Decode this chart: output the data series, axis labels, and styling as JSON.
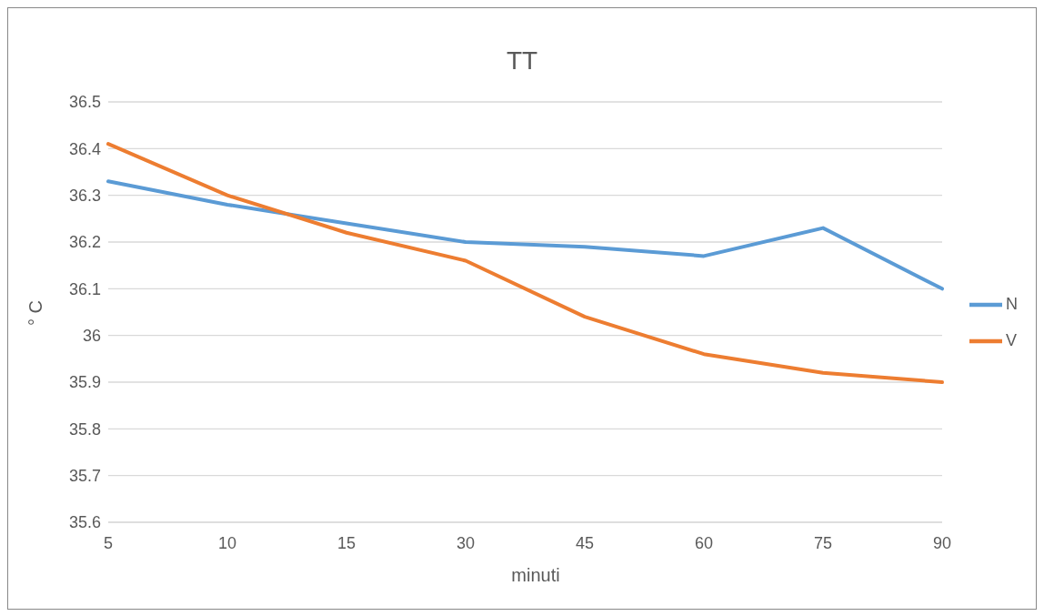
{
  "chart_data": {
    "type": "line",
    "title": "TT",
    "xlabel": "minuti",
    "ylabel": "° C",
    "categories": [
      "5",
      "10",
      "15",
      "30",
      "45",
      "60",
      "75",
      "90"
    ],
    "series": [
      {
        "name": "N",
        "color": "#5b9bd5",
        "values": [
          36.33,
          36.28,
          36.24,
          36.2,
          36.19,
          36.17,
          36.23,
          36.1
        ]
      },
      {
        "name": "V",
        "color": "#ed7d31",
        "values": [
          36.41,
          36.3,
          36.22,
          36.16,
          36.04,
          35.96,
          35.92,
          35.9
        ]
      }
    ],
    "ylim": [
      35.6,
      36.5
    ],
    "yticks": [
      35.6,
      35.7,
      35.8,
      35.9,
      36,
      36.1,
      36.2,
      36.3,
      36.4,
      36.5
    ],
    "grid": "y",
    "legend": "right",
    "marker": "none",
    "line_style": "solid"
  }
}
